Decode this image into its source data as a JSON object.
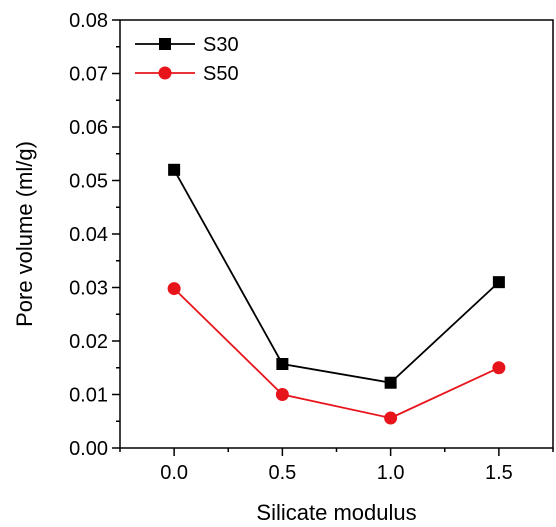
{
  "chart_data": {
    "type": "line",
    "xlabel": "Silicate modulus",
    "ylabel": "Pore volume (ml/g)",
    "x": [
      0.0,
      0.5,
      1.0,
      1.5
    ],
    "x_ticks": [
      "0.0",
      "0.5",
      "1.0",
      "1.5"
    ],
    "xlim": [
      -0.25,
      1.75
    ],
    "ylim": [
      0.0,
      0.08
    ],
    "y_ticks": [
      "0.00",
      "0.01",
      "0.02",
      "0.03",
      "0.04",
      "0.05",
      "0.06",
      "0.07",
      "0.08"
    ],
    "grid": false,
    "legend_position": "top-left",
    "series": [
      {
        "name": "S30",
        "values": [
          0.052,
          0.0157,
          0.0122,
          0.031
        ],
        "color": "#000000",
        "marker": "square"
      },
      {
        "name": "S50",
        "values": [
          0.0298,
          0.01,
          0.0056,
          0.015
        ],
        "color": "#e8141c",
        "marker": "circle"
      }
    ]
  }
}
